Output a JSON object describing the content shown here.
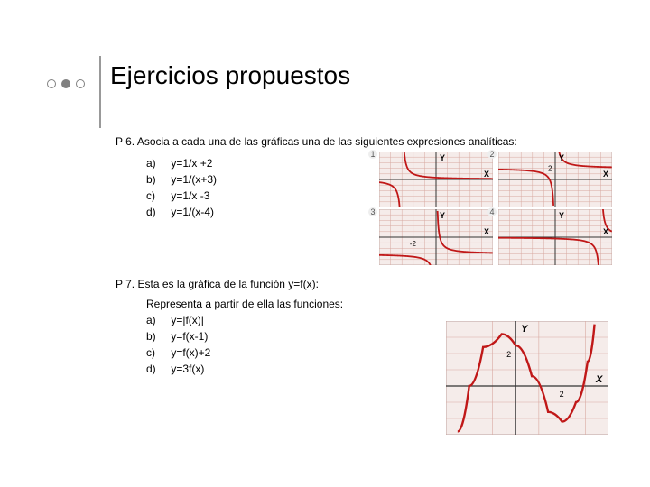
{
  "page_title": "Ejercicios propuestos",
  "title_fontsize": 28,
  "title_color": "#000000",
  "body_fontsize": 12,
  "body_color": "#000000",
  "background_color": "#ffffff",
  "decor": {
    "dots": [
      {
        "kind": "open",
        "size": 10,
        "border": "#808080"
      },
      {
        "kind": "fill",
        "size": 10,
        "fill": "#808080"
      },
      {
        "kind": "open",
        "size": 10,
        "border": "#808080"
      }
    ],
    "vbar_color": "#999999"
  },
  "problems": [
    {
      "label": "P 6.",
      "text": "Asocia a cada una de las gráficas una de las siguientes expresiones analíticas:",
      "options": [
        {
          "letter": "a)",
          "expr": "y=1/x +2"
        },
        {
          "letter": "b)",
          "expr": "y=1/(x+3)"
        },
        {
          "letter": "c)",
          "expr": "y=1/x -3"
        },
        {
          "letter": "d)",
          "expr": "y=1/(x-4)"
        }
      ],
      "charts": [
        {
          "tag": "1",
          "type": "hyperbola",
          "xlim": [
            -5,
            5
          ],
          "ylim": [
            -5,
            5
          ],
          "grid_color": "#d8a8a0",
          "bg_color": "#f5ecea",
          "axis_color": "#333333",
          "curve_color": "#c01818",
          "y_label_char": "Y",
          "x_label_char": "X",
          "curve": {
            "vshift": 0,
            "hshift": -3
          }
        },
        {
          "tag": "2",
          "type": "hyperbola",
          "xlim": [
            -5,
            5
          ],
          "ylim": [
            -5,
            5
          ],
          "grid_color": "#d8a8a0",
          "bg_color": "#f5ecea",
          "axis_color": "#333333",
          "curve_color": "#c01818",
          "y_label_char": "Y",
          "x_label_char": "X",
          "y_tick_label": "2",
          "curve": {
            "vshift": 2,
            "hshift": 0
          }
        },
        {
          "tag": "3",
          "type": "hyperbola",
          "xlim": [
            -5,
            5
          ],
          "ylim": [
            -5,
            5
          ],
          "grid_color": "#d8a8a0",
          "bg_color": "#f5ecea",
          "axis_color": "#333333",
          "curve_color": "#c01818",
          "y_label_char": "Y",
          "x_label_char": "X",
          "x_tick_label": "-2",
          "curve": {
            "vshift": -3,
            "hshift": 0
          }
        },
        {
          "tag": "4",
          "type": "hyperbola",
          "xlim": [
            -5,
            5
          ],
          "ylim": [
            -5,
            5
          ],
          "grid_color": "#d8a8a0",
          "bg_color": "#f5ecea",
          "axis_color": "#333333",
          "curve_color": "#c01818",
          "y_label_char": "Y",
          "x_label_char": "X",
          "curve": {
            "vshift": 0,
            "hshift": 4
          }
        }
      ]
    },
    {
      "label": "P 7.",
      "text": "Esta es la gráfica de la función y=f(x):",
      "subtext": "Representa a partir de ella las funciones:",
      "options": [
        {
          "letter": "a)",
          "expr": "y=|f(x)|"
        },
        {
          "letter": "b)",
          "expr": "y=f(x-1)"
        },
        {
          "letter": "c)",
          "expr": "y=f(x)+2"
        },
        {
          "letter": "d)",
          "expr": "y=3f(x)"
        }
      ],
      "chart": {
        "type": "cubic-like",
        "xlim": [
          -3,
          4
        ],
        "ylim": [
          -3,
          4
        ],
        "grid_color": "#d8a8a0",
        "bg_color": "#f5ecea",
        "axis_color": "#333333",
        "curve_color": "#c01818",
        "y_label_char": "Y",
        "x_label_char": "X",
        "y_tick_label": "2",
        "x_tick_label": "2",
        "points": [
          [
            -2.5,
            -2.8
          ],
          [
            -2,
            0
          ],
          [
            -1.4,
            2.4
          ],
          [
            -0.6,
            3.2
          ],
          [
            0,
            2.5
          ],
          [
            0.7,
            0.6
          ],
          [
            1.4,
            -1.6
          ],
          [
            2,
            -2.2
          ],
          [
            2.6,
            -1.0
          ],
          [
            3.1,
            1.5
          ],
          [
            3.4,
            3.8
          ]
        ]
      }
    }
  ]
}
